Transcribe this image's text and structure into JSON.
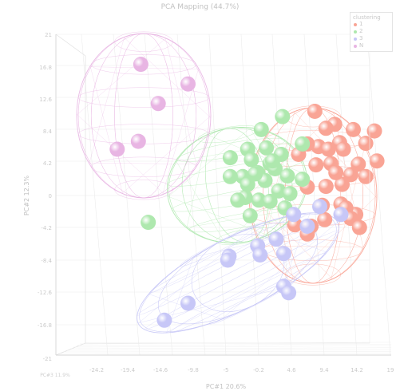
{
  "chart_data": {
    "type": "scatter",
    "title": "PCA Mapping (44.7%)",
    "xlabel": "PC#1 20.6%",
    "ylabel": "PC#2 12.3%",
    "zlabel": "PC#3 11.9%",
    "x_ticks": [
      "-24.2",
      "-19.4",
      "-14.6",
      "-9.8",
      "-5",
      "-0.2",
      "4.6",
      "9.4",
      "14.2",
      "19"
    ],
    "y_ticks": [
      "21",
      "16.8",
      "12.6",
      "8.4",
      "4.2",
      "0",
      "-4.2",
      "-8.4",
      "-12.6",
      "-16.8",
      "-21"
    ],
    "legend": {
      "title": "clustering",
      "entries": [
        "1",
        "2",
        "3",
        "N"
      ],
      "position": "top-right"
    },
    "colors": {
      "1": "#f9a495",
      "2": "#aee8ae",
      "3": "#c7c7f7",
      "N": "#e8b5e3"
    },
    "series": [
      {
        "name": "1",
        "points": [
          [
            8.6,
            10.2
          ],
          [
            11.8,
            8.2
          ],
          [
            14.8,
            7.4
          ],
          [
            12.6,
            5.4
          ],
          [
            10.4,
            7.6
          ],
          [
            18.2,
            7.2
          ],
          [
            16.8,
            5.3
          ],
          [
            9.2,
            4.8
          ],
          [
            13.2,
            4.4
          ],
          [
            7.4,
            5.2
          ],
          [
            8.8,
            2.0
          ],
          [
            11.2,
            2.2
          ],
          [
            15.6,
            2.1
          ],
          [
            7.4,
            -1.4
          ],
          [
            10.4,
            -1.3
          ],
          [
            13.0,
            -1.0
          ],
          [
            16.8,
            0.2
          ],
          [
            14.4,
            0.5
          ],
          [
            9.8,
            -4.2
          ],
          [
            12.8,
            -4.0
          ],
          [
            15.2,
            -5.6
          ],
          [
            13.6,
            -4.6
          ],
          [
            10.2,
            -6.4
          ],
          [
            5.4,
            -7.2
          ],
          [
            8.0,
            -7.4
          ],
          [
            14.4,
            -6.2
          ],
          [
            7.4,
            -8.6
          ],
          [
            12.0,
            0.8
          ],
          [
            10.8,
            4.4
          ],
          [
            18.6,
            2.6
          ],
          [
            15.8,
            -7.6
          ],
          [
            6.0,
            3.6
          ]
        ]
      },
      {
        "name": "2",
        "points": [
          [
            0.0,
            7.4
          ],
          [
            3.4,
            9.4
          ],
          [
            6.6,
            5.2
          ],
          [
            -2.2,
            4.4
          ],
          [
            -5.0,
            3.1
          ],
          [
            -1.6,
            2.8
          ],
          [
            1.4,
            2.2
          ],
          [
            -0.6,
            0.8
          ],
          [
            2.2,
            1.4
          ],
          [
            -3.0,
            0.2
          ],
          [
            0.6,
            -0.4
          ],
          [
            4.2,
            0.3
          ],
          [
            -5.0,
            0.2
          ],
          [
            -2.2,
            -1.0
          ],
          [
            2.8,
            -2.0
          ],
          [
            -0.4,
            -3.4
          ],
          [
            1.4,
            -3.6
          ],
          [
            3.8,
            -4.6
          ],
          [
            -1.8,
            -5.8
          ],
          [
            -2.6,
            -3.0
          ],
          [
            4.6,
            -2.4
          ],
          [
            6.6,
            -0.2
          ],
          [
            -18.2,
            -6.8
          ],
          [
            0.8,
            4.6
          ],
          [
            3.2,
            3.6
          ],
          [
            -3.8,
            -3.4
          ],
          [
            1.8,
            2.6
          ],
          [
            -1.0,
            0.6
          ]
        ]
      },
      {
        "name": "3",
        "points": [
          [
            5.2,
            -5.6
          ],
          [
            9.4,
            -4.4
          ],
          [
            12.8,
            -5.6
          ],
          [
            7.4,
            -7.4
          ],
          [
            2.4,
            -9.4
          ],
          [
            -0.6,
            -10.4
          ],
          [
            3.6,
            -11.6
          ],
          [
            -5.2,
            -12.0
          ],
          [
            -5.4,
            -12.6
          ],
          [
            -0.2,
            -11.8
          ],
          [
            3.6,
            -16.6
          ],
          [
            4.4,
            -17.6
          ],
          [
            -11.8,
            -19.2
          ],
          [
            -15.6,
            -21.8
          ]
        ]
      },
      {
        "name": "N",
        "points": [
          [
            -19.4,
            17.4
          ],
          [
            -11.8,
            14.4
          ],
          [
            -16.6,
            11.4
          ],
          [
            -19.8,
            5.6
          ],
          [
            -23.2,
            4.4
          ]
        ]
      }
    ]
  }
}
